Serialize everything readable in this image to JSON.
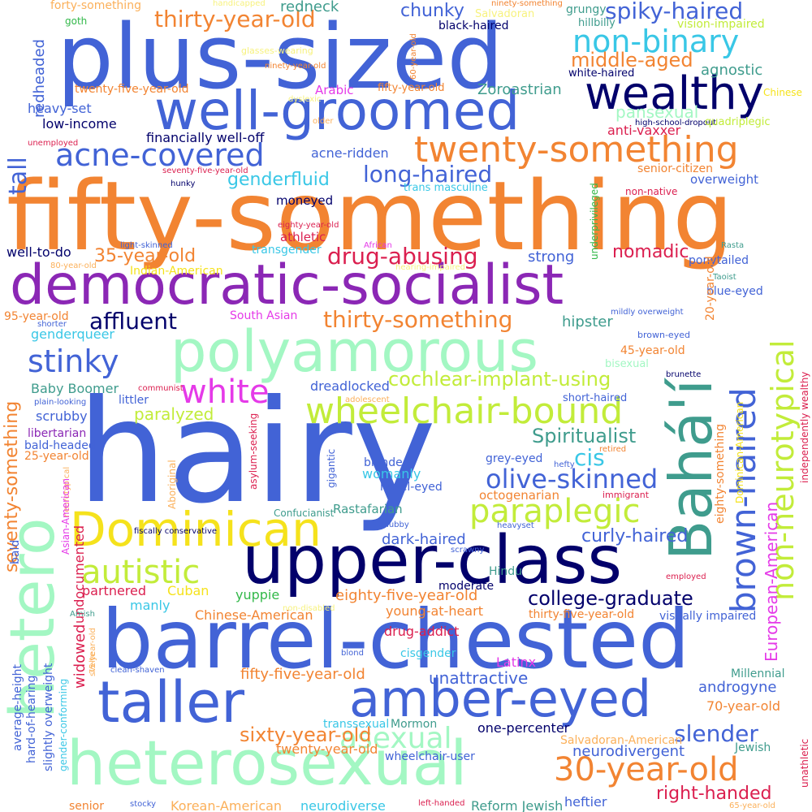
{
  "palette": {
    "royal_blue": "#4263d6",
    "orange": "#f28432",
    "purple": "#8b27b5",
    "mint": "#a3f7c3",
    "navy": "#02006b",
    "yellow": "#f5e21c",
    "teal": "#3f9c8d",
    "lime": "#c2ec3a",
    "crimson": "#db1f4f",
    "magenta": "#e53ae8",
    "cyan": "#39c7e6",
    "green": "#32b849",
    "light_yellow": "#f7f27e",
    "light_orange": "#fbb05a"
  },
  "words": [
    {
      "text": "fifty-something",
      "color": "orange"
    },
    {
      "text": "hairy",
      "color": "royal_blue"
    },
    {
      "text": "plus-sized",
      "color": "royal_blue"
    },
    {
      "text": "democratic-socialist",
      "color": "purple"
    },
    {
      "text": "barrel-chested",
      "color": "royal_blue"
    },
    {
      "text": "well-groomed",
      "color": "royal_blue"
    },
    {
      "text": "upper-class",
      "color": "navy"
    },
    {
      "text": "polyamorous",
      "color": "mint"
    },
    {
      "text": "heterosexual",
      "color": "mint"
    },
    {
      "text": "hetero",
      "color": "mint"
    },
    {
      "text": "Dominican",
      "color": "yellow"
    },
    {
      "text": "taller",
      "color": "royal_blue"
    },
    {
      "text": "amber-eyed",
      "color": "royal_blue"
    },
    {
      "text": "Bahá'í",
      "color": "teal"
    },
    {
      "text": "wheelchair-bound",
      "color": "lime"
    },
    {
      "text": "twenty-something",
      "color": "orange"
    },
    {
      "text": "brown-haired",
      "color": "royal_blue"
    },
    {
      "text": "wealthy",
      "color": "navy"
    },
    {
      "text": "non-neurotypical",
      "color": "lime"
    },
    {
      "text": "acne-covered",
      "color": "royal_blue"
    },
    {
      "text": "non-binary",
      "color": "cyan"
    },
    {
      "text": "white",
      "color": "magenta"
    },
    {
      "text": "stinky",
      "color": "royal_blue"
    },
    {
      "text": "autistic",
      "color": "lime"
    },
    {
      "text": "30-year-old",
      "color": "orange"
    },
    {
      "text": "paraplegic",
      "color": "lime"
    },
    {
      "text": "asexual",
      "color": "mint"
    },
    {
      "text": "olive-skinned",
      "color": "royal_blue"
    },
    {
      "text": "thirty-year-old",
      "color": "orange"
    },
    {
      "text": "affluent",
      "color": "navy"
    },
    {
      "text": "thirty-something",
      "color": "orange"
    },
    {
      "text": "drug-abusing",
      "color": "crimson"
    },
    {
      "text": "spiky-haired",
      "color": "royal_blue"
    },
    {
      "text": "long-haired",
      "color": "royal_blue"
    },
    {
      "text": "middle-aged",
      "color": "orange"
    },
    {
      "text": "sixty-year-old",
      "color": "orange"
    },
    {
      "text": "slender",
      "color": "royal_blue"
    },
    {
      "text": "seventy-something",
      "color": "orange"
    },
    {
      "text": "tall",
      "color": "royal_blue"
    },
    {
      "text": "cochlear-implant-using",
      "color": "lime"
    },
    {
      "text": "Spiritualist",
      "color": "teal"
    },
    {
      "text": "college-graduate",
      "color": "navy"
    },
    {
      "text": "European-American",
      "color": "magenta"
    },
    {
      "text": "curly-haired",
      "color": "royal_blue"
    },
    {
      "text": "right-handed",
      "color": "crimson"
    },
    {
      "text": "cis",
      "color": "cyan"
    },
    {
      "text": "35-year-old",
      "color": "orange"
    },
    {
      "text": "nomadic",
      "color": "crimson"
    },
    {
      "text": "genderfluid",
      "color": "cyan"
    },
    {
      "text": "chunky",
      "color": "royal_blue"
    },
    {
      "text": "redneck",
      "color": "teal"
    },
    {
      "text": "unattractive",
      "color": "royal_blue"
    },
    {
      "text": "fifty-five-year-old",
      "color": "orange"
    },
    {
      "text": "eighty-five-year-old",
      "color": "orange"
    },
    {
      "text": "paralyzed",
      "color": "lime"
    },
    {
      "text": "pansexual",
      "color": "mint"
    },
    {
      "text": "strong",
      "color": "royal_blue"
    },
    {
      "text": "dark-haired",
      "color": "royal_blue"
    },
    {
      "text": "androgyne",
      "color": "royal_blue"
    },
    {
      "text": "neurodivergent",
      "color": "royal_blue"
    },
    {
      "text": "hipster",
      "color": "teal"
    },
    {
      "text": "forty-something",
      "color": "light_orange"
    },
    {
      "text": "goth",
      "color": "green"
    },
    {
      "text": "handicapped",
      "color": "light_yellow"
    },
    {
      "text": "ninety-something",
      "color": "orange"
    },
    {
      "text": "grungy",
      "color": "teal"
    },
    {
      "text": "hillbilly",
      "color": "teal"
    },
    {
      "text": "vision-impaired",
      "color": "lime"
    },
    {
      "text": "black-haired",
      "color": "navy"
    },
    {
      "text": "Salvadoran",
      "color": "light_yellow"
    },
    {
      "text": "glasses-wearing",
      "color": "light_yellow"
    },
    {
      "text": "ninety-year-old",
      "color": "orange"
    },
    {
      "text": "redheaded",
      "color": "royal_blue"
    },
    {
      "text": "60-year-old",
      "color": "orange"
    },
    {
      "text": "twenty-five-year-old",
      "color": "orange"
    },
    {
      "text": "Arabic",
      "color": "magenta"
    },
    {
      "text": "fifty-year-old",
      "color": "orange"
    },
    {
      "text": "Zoroastrian",
      "color": "teal"
    },
    {
      "text": "agnostic",
      "color": "teal"
    },
    {
      "text": "white-haired",
      "color": "navy"
    },
    {
      "text": "Chinese",
      "color": "yellow"
    },
    {
      "text": "heavy-set",
      "color": "royal_blue"
    },
    {
      "text": "dyslexic",
      "color": "light_yellow"
    },
    {
      "text": "low-income",
      "color": "navy"
    },
    {
      "text": "older",
      "color": "light_orange"
    },
    {
      "text": "financially well-off",
      "color": "navy"
    },
    {
      "text": "high-school-dropout",
      "color": "navy"
    },
    {
      "text": "quadriplegic",
      "color": "lime"
    },
    {
      "text": "anti-vaxxer",
      "color": "crimson"
    },
    {
      "text": "unemployed",
      "color": "crimson"
    },
    {
      "text": "acne-ridden",
      "color": "royal_blue"
    },
    {
      "text": "seventy-five-year-old",
      "color": "crimson"
    },
    {
      "text": "senior-citizen",
      "color": "orange"
    },
    {
      "text": "hunky",
      "color": "navy"
    },
    {
      "text": "trans masculine",
      "color": "cyan"
    },
    {
      "text": "overweight",
      "color": "royal_blue"
    },
    {
      "text": "underprivileged",
      "color": "green"
    },
    {
      "text": "non-native",
      "color": "crimson"
    },
    {
      "text": "moneyed",
      "color": "navy"
    },
    {
      "text": "eighty-year-old",
      "color": "crimson"
    },
    {
      "text": "athletic",
      "color": "crimson"
    },
    {
      "text": "light-skinned",
      "color": "royal_blue"
    },
    {
      "text": "African",
      "color": "magenta"
    },
    {
      "text": "Rasta",
      "color": "teal"
    },
    {
      "text": "well-to-do",
      "color": "navy"
    },
    {
      "text": "transgender",
      "color": "cyan"
    },
    {
      "text": "ponytailed",
      "color": "royal_blue"
    },
    {
      "text": "80-year-old",
      "color": "light_orange"
    },
    {
      "text": "Indian-American",
      "color": "yellow"
    },
    {
      "text": "hearing-impaired",
      "color": "light_yellow"
    },
    {
      "text": "Taoist",
      "color": "teal"
    },
    {
      "text": "blue-eyed",
      "color": "royal_blue"
    },
    {
      "text": "95-year-old",
      "color": "orange"
    },
    {
      "text": "South Asian",
      "color": "magenta"
    },
    {
      "text": "mildly overweight",
      "color": "royal_blue"
    },
    {
      "text": "shorter",
      "color": "royal_blue"
    },
    {
      "text": "genderqueer",
      "color": "cyan"
    },
    {
      "text": "brown-eyed",
      "color": "royal_blue"
    },
    {
      "text": "45-year-old",
      "color": "orange"
    },
    {
      "text": "20-year-old",
      "color": "orange"
    },
    {
      "text": "bisexual",
      "color": "mint"
    },
    {
      "text": "brunette",
      "color": "navy"
    },
    {
      "text": "Baby Boomer",
      "color": "teal"
    },
    {
      "text": "communist",
      "color": "crimson"
    },
    {
      "text": "dreadlocked",
      "color": "royal_blue"
    },
    {
      "text": "adolescent",
      "color": "light_orange"
    },
    {
      "text": "short-haired",
      "color": "royal_blue"
    },
    {
      "text": "littler",
      "color": "royal_blue"
    },
    {
      "text": "plain-looking",
      "color": "royal_blue"
    },
    {
      "text": "scrubby",
      "color": "royal_blue"
    },
    {
      "text": "libertarian",
      "color": "purple"
    },
    {
      "text": "asylum-seeking",
      "color": "crimson"
    },
    {
      "text": "Aboriginal",
      "color": "light_orange"
    },
    {
      "text": "bald-headed",
      "color": "royal_blue"
    },
    {
      "text": "25-year-old",
      "color": "orange"
    },
    {
      "text": "retired",
      "color": "orange"
    },
    {
      "text": "hefty",
      "color": "royal_blue"
    },
    {
      "text": "grey-eyed",
      "color": "royal_blue"
    },
    {
      "text": "blonde",
      "color": "royal_blue"
    },
    {
      "text": "eighty-something",
      "color": "orange"
    },
    {
      "text": "independently wealthy",
      "color": "crimson"
    },
    {
      "text": "gigantic",
      "color": "royal_blue"
    },
    {
      "text": "womanly",
      "color": "cyan"
    },
    {
      "text": "hazel-eyed",
      "color": "royal_blue"
    },
    {
      "text": "octogenarian",
      "color": "orange"
    },
    {
      "text": "immigrant",
      "color": "crimson"
    },
    {
      "text": "neurotypical",
      "color": "light_orange"
    },
    {
      "text": "Confucianist",
      "color": "teal"
    },
    {
      "text": "Rastafarian",
      "color": "teal"
    },
    {
      "text": "heavyset",
      "color": "royal_blue"
    },
    {
      "text": "Dominican-American",
      "color": "yellow"
    },
    {
      "text": "Asian-American",
      "color": "magenta"
    },
    {
      "text": "chubby",
      "color": "royal_blue"
    },
    {
      "text": "bald",
      "color": "royal_blue"
    },
    {
      "text": "fiscally conservative",
      "color": "navy"
    },
    {
      "text": "scrawny",
      "color": "royal_blue"
    },
    {
      "text": "Hindu",
      "color": "teal"
    },
    {
      "text": "partnered",
      "color": "crimson"
    },
    {
      "text": "Cuban",
      "color": "yellow"
    },
    {
      "text": "moderate",
      "color": "navy"
    },
    {
      "text": "employed",
      "color": "crimson"
    },
    {
      "text": "undocumented",
      "color": "crimson"
    },
    {
      "text": "yuppie",
      "color": "green"
    },
    {
      "text": "manly",
      "color": "cyan"
    },
    {
      "text": "Chinese-American",
      "color": "orange"
    },
    {
      "text": "young-at-heart",
      "color": "orange"
    },
    {
      "text": "non-disabled",
      "color": "light_yellow"
    },
    {
      "text": "Amish",
      "color": "teal"
    },
    {
      "text": "drug-addict",
      "color": "crimson"
    },
    {
      "text": "thirty-five-year-old",
      "color": "orange"
    },
    {
      "text": "visually impaired",
      "color": "royal_blue"
    },
    {
      "text": "75-year-old",
      "color": "light_orange"
    },
    {
      "text": "blond",
      "color": "royal_blue"
    },
    {
      "text": "cisgender",
      "color": "cyan"
    },
    {
      "text": "widowed",
      "color": "crimson"
    },
    {
      "text": "clean-shaven",
      "color": "royal_blue"
    },
    {
      "text": "svelte",
      "color": "light_orange"
    },
    {
      "text": "Latinx",
      "color": "magenta"
    },
    {
      "text": "Millennial",
      "color": "teal"
    },
    {
      "text": "average-height",
      "color": "royal_blue"
    },
    {
      "text": "hard-of-hearing",
      "color": "royal_blue"
    },
    {
      "text": "slightly overweight",
      "color": "royal_blue"
    },
    {
      "text": "gender-conforming",
      "color": "cyan"
    },
    {
      "text": "70-year-old",
      "color": "orange"
    },
    {
      "text": "transsexual",
      "color": "cyan"
    },
    {
      "text": "Mormon",
      "color": "teal"
    },
    {
      "text": "one-percenter",
      "color": "navy"
    },
    {
      "text": "twenty-year-old",
      "color": "orange"
    },
    {
      "text": "Salvadoran-American",
      "color": "light_orange"
    },
    {
      "text": "Jewish",
      "color": "teal"
    },
    {
      "text": "wheelchair-user",
      "color": "royal_blue"
    },
    {
      "text": "unathletic",
      "color": "crimson"
    },
    {
      "text": "senior",
      "color": "orange"
    },
    {
      "text": "stocky",
      "color": "royal_blue"
    },
    {
      "text": "Korean-American",
      "color": "light_orange"
    },
    {
      "text": "neurodiverse",
      "color": "cyan"
    },
    {
      "text": "left-handed",
      "color": "crimson"
    },
    {
      "text": "Reform Jewish",
      "color": "teal"
    },
    {
      "text": "heftier",
      "color": "royal_blue"
    },
    {
      "text": "65-year-old",
      "color": "light_orange"
    }
  ]
}
